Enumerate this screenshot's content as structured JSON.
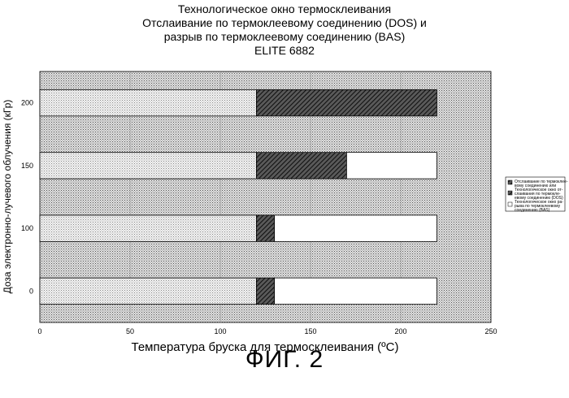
{
  "chart_data": {
    "type": "bar",
    "orientation": "horizontal",
    "stacked": true,
    "title_lines": [
      "Технологическое окно термосклеивания",
      "Отслаивание по термоклеевому соединению (DOS) и",
      "разрыв по термоклеевому соединению (BAS)",
      "ELITE 6882"
    ],
    "xlabel": "Температура бруска для термосклеивания (ºC)",
    "ylabel": "Доза электронно-лучевого облучения (кГр)",
    "xlim": [
      0,
      250
    ],
    "xticks": [
      "0",
      "50",
      "100",
      "150",
      "200",
      "250"
    ],
    "categories": [
      "0",
      "100",
      "150",
      "200"
    ],
    "series": [
      {
        "values": [
          120,
          120,
          120,
          120
        ],
        "fill": "light-dots"
      },
      {
        "name": "Отслаивание по термоклеевому соединению",
        "values": [
          10,
          10,
          50,
          100
        ],
        "fill": "dark-hatch"
      },
      {
        "name": "Разрыв по термоклеевому соединению (BAS)",
        "values": [
          90,
          90,
          50,
          0
        ],
        "fill": "white"
      }
    ],
    "legend_position": "right",
    "grid": true
  },
  "legend": {
    "item1": [
      "Отслаивание по термоклее-",
      "вому соединению или",
      "Технологическое окно от-",
      "слаивания по термокле-",
      "евому соединению (DOS)"
    ],
    "item2": [
      "Технологическое окно ра-",
      "рыва по термоклеевому",
      "соединению (BAS)"
    ]
  },
  "figure_label": "ФИГ. 2"
}
